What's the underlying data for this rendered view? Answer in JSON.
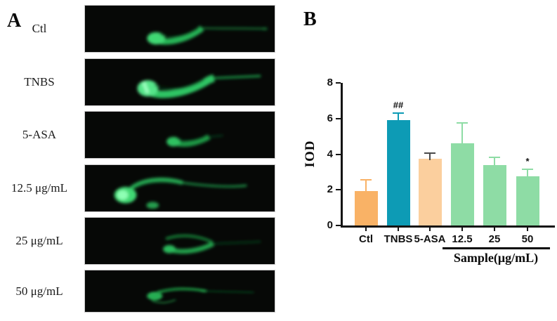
{
  "figure_labels": {
    "panel_a": "A",
    "panel_b": "B"
  },
  "panel_a": {
    "rows": [
      {
        "label": "Ctl"
      },
      {
        "label": "TNBS"
      },
      {
        "label": "5-ASA"
      },
      {
        "label": "12.5 μg/mL"
      },
      {
        "label": "25 μg/mL"
      },
      {
        "label": "50 μg/mL"
      }
    ]
  },
  "chart_data": {
    "type": "bar",
    "title": "",
    "categories": [
      "Ctl",
      "TNBS",
      "5-ASA",
      "12.5",
      "25",
      "50"
    ],
    "values": [
      1.95,
      5.9,
      3.75,
      4.6,
      3.4,
      2.75
    ],
    "errors_plus": [
      0.65,
      0.45,
      0.35,
      1.2,
      0.45,
      0.45
    ],
    "bar_colors": [
      "#F9B266",
      "#0D9BB5",
      "#FBCF9E",
      "#8EDCA5",
      "#8EDCA5",
      "#8EDCA5"
    ],
    "error_bar_colors": [
      "#F9B266",
      "#0D9BB5",
      "#4A4A4A",
      "#8EDCA5",
      "#8EDCA5",
      "#8EDCA5"
    ],
    "annotations": [
      {
        "category_index": 1,
        "text": "##"
      },
      {
        "category_index": 5,
        "text": "*"
      }
    ],
    "ylabel": "IOD",
    "xlabel": "",
    "yticks": [
      0,
      2,
      4,
      6,
      8
    ],
    "ylim": [
      0,
      8
    ],
    "grid": false,
    "legend": false,
    "group_label": "Sample(μg/mL)",
    "group_members": [
      "12.5",
      "25",
      "50"
    ]
  }
}
